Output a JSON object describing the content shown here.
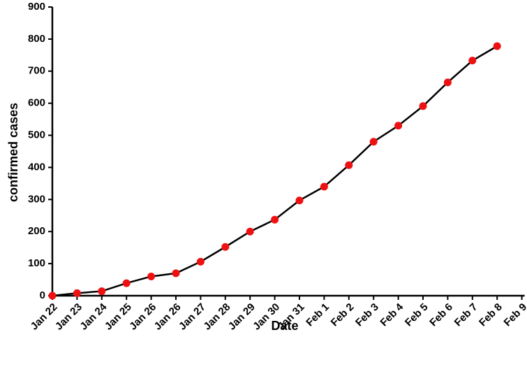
{
  "chart_data": {
    "type": "line",
    "xlabel": "Date",
    "ylabel": "confirmed cases",
    "categories": [
      "Jan 22",
      "Jan 23",
      "Jan 24",
      "Jan 25",
      "Jan 26",
      "Jan 26",
      "Jan 27",
      "Jan 28",
      "Jan 29",
      "Jan 30",
      "Jan 31",
      "Feb 1",
      "Feb 2",
      "Feb 3",
      "Feb 4",
      "Feb 5",
      "Feb 6",
      "Feb 7",
      "Feb 8",
      "Feb 9"
    ],
    "values": [
      0,
      8,
      14,
      39,
      60,
      70,
      106,
      152,
      200,
      237,
      297,
      340,
      407,
      480,
      530,
      591,
      665,
      733,
      778,
      null
    ],
    "color": "#000000",
    "marker_color": "#ee1111",
    "ylim": [
      0,
      900
    ],
    "yticks": [
      0,
      100,
      200,
      300,
      400,
      500,
      600,
      700,
      800,
      900
    ],
    "grid": false
  }
}
